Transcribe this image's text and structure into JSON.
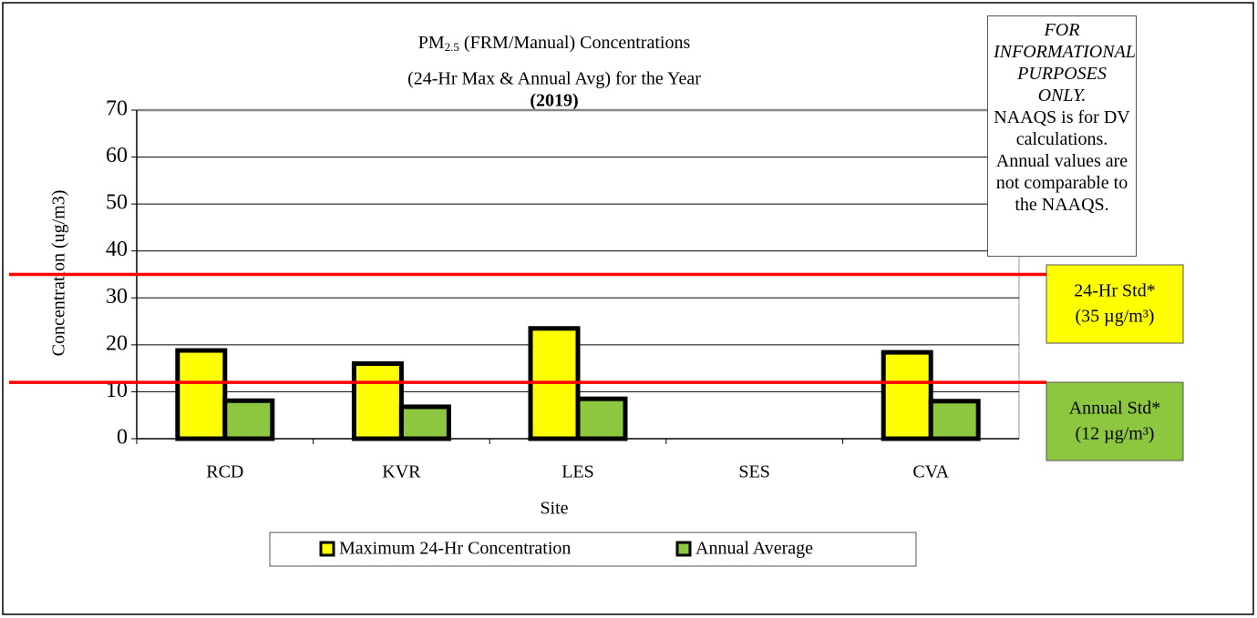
{
  "chart_data": {
    "type": "bar",
    "title": {
      "main": "PM",
      "sub": "2.5",
      "rest": " (FRM/Manual) Concentrations"
    },
    "subtitle": "(24-Hr Max & Annual Avg) for the Year",
    "year_label": "(2019)",
    "x_label": "Site",
    "y_label": "Concentration (ug/m3)",
    "categories": [
      "RCD",
      "KVR",
      "LES",
      "SES",
      "CVA"
    ],
    "series": [
      {
        "name": "Maximum 24-Hr Concentration",
        "color": "#ffff00",
        "values": [
          18.8,
          16.0,
          23.5,
          null,
          18.4
        ]
      },
      {
        "name": "Annual Average",
        "color": "#8dc63f",
        "values": [
          8.1,
          6.8,
          8.5,
          null,
          8.0
        ]
      }
    ],
    "ylim": [
      0,
      70
    ],
    "yticks": [
      0,
      10,
      20,
      30,
      40,
      50,
      60,
      70
    ],
    "grid": true,
    "reference_lines": [
      {
        "value": 35,
        "color": "#ff0000",
        "label": "24-Hr Std*",
        "unit_label": "(35 µg/m³)",
        "box_color": "#ffff00"
      },
      {
        "value": 12,
        "color": "#ff0000",
        "label": "Annual Std*",
        "unit_label": "(12 µg/m³)",
        "box_color": "#8dc63f"
      }
    ],
    "note": {
      "italic": "FOR INFORMATIONAL PURPOSES ONLY.",
      "text": "NAAQS is for DV calculations. Annual values are not comparable to the NAAQS."
    }
  }
}
